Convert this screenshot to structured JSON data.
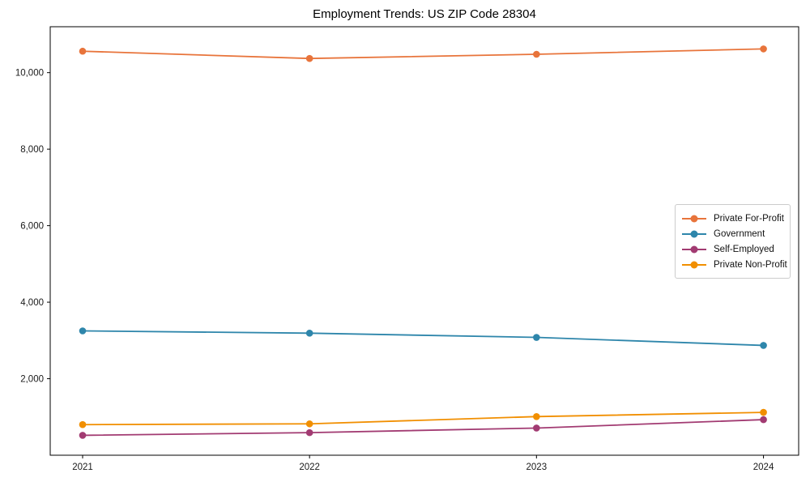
{
  "figure": {
    "background_color": "#ffffff",
    "spine_color": "#000000",
    "tick_label_color": "#1a1a1a"
  },
  "chart_data": {
    "type": "line",
    "title": "Employment Trends: US ZIP Code 28304",
    "xlabel": "",
    "ylabel": "",
    "categories": [
      "2021",
      "2022",
      "2023",
      "2024"
    ],
    "series": [
      {
        "name": "Private For-Profit",
        "color": "#e8743b",
        "values": [
          10560,
          10370,
          10480,
          10620
        ]
      },
      {
        "name": "Government",
        "color": "#2e86ab",
        "values": [
          3250,
          3190,
          3080,
          2870
        ]
      },
      {
        "name": "Self-Employed",
        "color": "#a23b72",
        "values": [
          520,
          590,
          710,
          930
        ]
      },
      {
        "name": "Private Non-Profit",
        "color": "#f18f01",
        "values": [
          800,
          820,
          1010,
          1120
        ]
      }
    ],
    "ylim": [
      0,
      11200
    ],
    "yticks": [
      2000,
      4000,
      6000,
      8000,
      10000
    ],
    "ytick_labels": [
      "2,000",
      "4,000",
      "6,000",
      "8,000",
      "10,000"
    ],
    "grid": false,
    "marker": "circle",
    "legend_position": "center right"
  }
}
